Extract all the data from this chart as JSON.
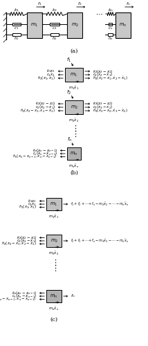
{
  "bg_color": "#ffffff",
  "fig_width": 2.14,
  "fig_height": 5.0,
  "dpi": 100,
  "label_a": "(a)",
  "label_b": "(b)",
  "label_c": "(c)",
  "mass_gray": "#c8c8c8",
  "mass_gray2": "#b0b0b0"
}
